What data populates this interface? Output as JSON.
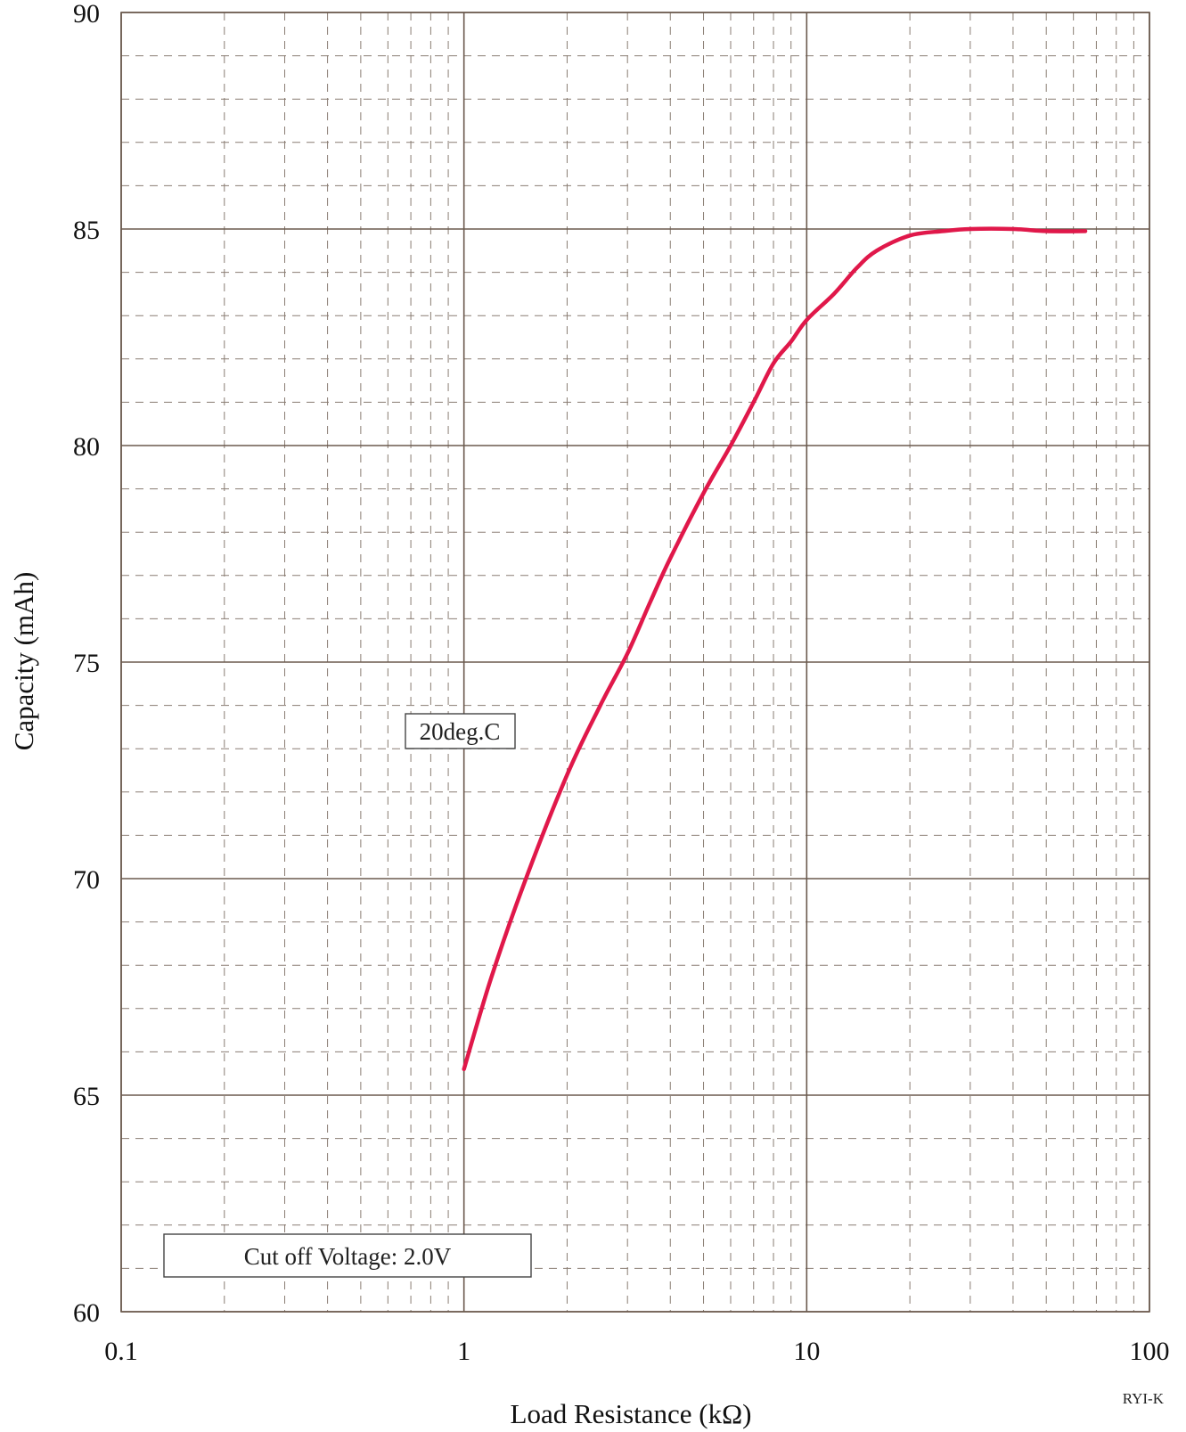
{
  "chart_data": {
    "type": "line",
    "title": "",
    "xlabel": "Load Resistance (kΩ)",
    "ylabel": "Capacity  (mAh)",
    "x_scale": "log",
    "xlim": [
      0.1,
      100
    ],
    "ylim": [
      60,
      90
    ],
    "x_ticks": [
      {
        "value": 0.1,
        "label": "0.1"
      },
      {
        "value": 1,
        "label": "1"
      },
      {
        "value": 10,
        "label": "10"
      },
      {
        "value": 100,
        "label": "100"
      }
    ],
    "y_ticks": [
      {
        "value": 60,
        "label": "60"
      },
      {
        "value": 65,
        "label": "65"
      },
      {
        "value": 70,
        "label": "70"
      },
      {
        "value": 75,
        "label": "75"
      },
      {
        "value": 80,
        "label": "80"
      },
      {
        "value": 85,
        "label": "85"
      },
      {
        "value": 90,
        "label": "90"
      }
    ],
    "grid": true,
    "line_color": "#e0184a",
    "grid_major_color": "#6b5a4e",
    "grid_minor_color": "#8a7d73",
    "series": [
      {
        "name": "",
        "x": [
          1.0,
          1.2,
          1.5,
          2.0,
          2.5,
          3.0,
          3.5,
          4.0,
          5.0,
          6.0,
          7.0,
          8.0,
          9.0,
          10.0,
          12.0,
          14.0,
          16.0,
          20.0,
          25.0,
          30.0,
          40.0,
          50.0,
          65.0
        ],
        "y": [
          65.6,
          67.7,
          69.9,
          72.4,
          74.0,
          75.2,
          76.4,
          77.4,
          78.9,
          80.0,
          81.0,
          81.9,
          82.4,
          82.9,
          83.5,
          84.1,
          84.5,
          84.85,
          84.95,
          85.0,
          85.0,
          84.95,
          84.95
        ]
      }
    ],
    "annotations": [
      {
        "id": "temp",
        "text": "20deg.C"
      },
      {
        "id": "cutoff",
        "text": "Cut off Voltage: 2.0V"
      }
    ],
    "corner_code": "RYI-K"
  }
}
